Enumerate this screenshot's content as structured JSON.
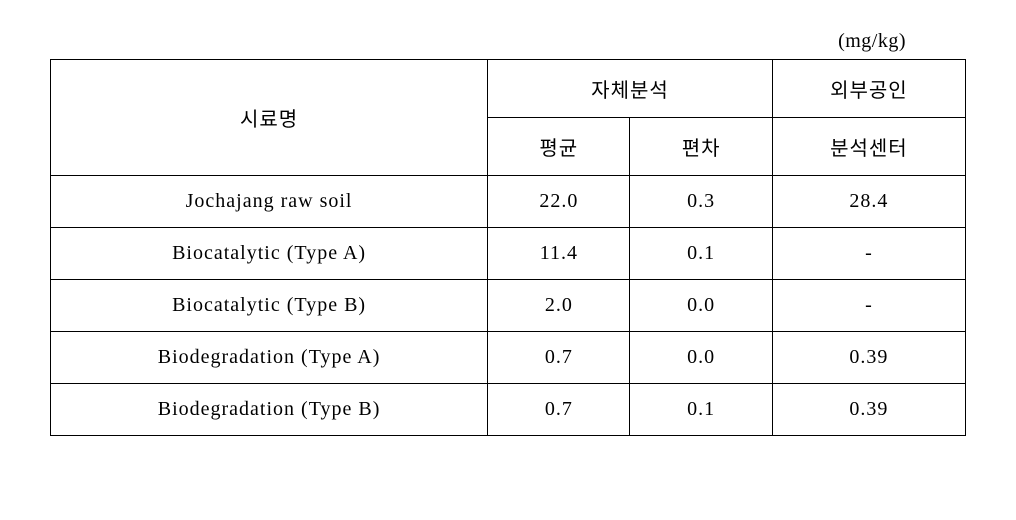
{
  "unit_label": "(mg/kg)",
  "headers": {
    "sample_name": "시료명",
    "self_analysis": "자체분석",
    "mean": "평균",
    "deviation": "편차",
    "external_top": "외부공인",
    "external_bottom": "분석센터"
  },
  "rows": [
    {
      "name": "Jochajang raw soil",
      "mean": "22.0",
      "dev": "0.3",
      "ext": "28.4"
    },
    {
      "name": "Biocatalytic (Type  A)",
      "mean": "11.4",
      "dev": "0.1",
      "ext": "-"
    },
    {
      "name": "Biocatalytic (Type  B)",
      "mean": "2.0",
      "dev": "0.0",
      "ext": "-"
    },
    {
      "name": "Biodegradation (Type  A)",
      "mean": "0.7",
      "dev": "0.0",
      "ext": "0.39"
    },
    {
      "name": "Biodegradation (Type  B)",
      "mean": "0.7",
      "dev": "0.1",
      "ext": "0.39"
    }
  ],
  "styles": {
    "font_family": "Times New Roman",
    "font_size_pt": 15,
    "border_color": "#000000",
    "background_color": "#ffffff",
    "text_color": "#000000"
  }
}
